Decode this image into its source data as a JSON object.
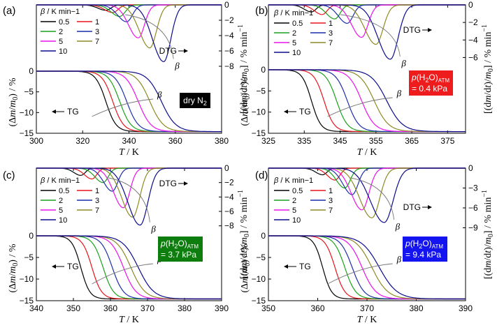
{
  "chart_data": [
    {
      "panel": "(a)",
      "type": "line",
      "xlabel": "T / K",
      "ylabel_left": "(Δm/m0) / %",
      "ylabel_right": "[(dm/dt)/m0] / % min−1",
      "xlim": [
        300,
        380
      ],
      "xticks": [
        300,
        320,
        340,
        360,
        380
      ],
      "tg_ylim": [
        -15,
        0
      ],
      "tg_yticks": [
        0,
        -5,
        -10,
        -15
      ],
      "dtg_ylim": [
        -8,
        0
      ],
      "dtg_yticks": [
        0,
        -2,
        -4,
        -6,
        -8
      ],
      "atmosphere_label": [
        "dry N",
        "2",
        ""
      ],
      "annotations": {
        "dtg": "DTG",
        "tg": "TG",
        "beta": "β"
      },
      "legend_title": "β / K min−1",
      "series": [
        {
          "name": "0.5",
          "tg_mid": 330,
          "tg_width": 2.2,
          "dtg_peak": 330,
          "dtg_min": -0.7
        },
        {
          "name": "1",
          "tg_mid": 333,
          "tg_width": 2.3,
          "dtg_peak": 333,
          "dtg_min": -1.0
        },
        {
          "name": "2",
          "tg_mid": 336,
          "tg_width": 2.4,
          "dtg_peak": 336,
          "dtg_min": -1.5
        },
        {
          "name": "3",
          "tg_mid": 339,
          "tg_width": 2.5,
          "dtg_peak": 339,
          "dtg_min": -2.2
        },
        {
          "name": "5",
          "tg_mid": 344,
          "tg_width": 2.7,
          "dtg_peak": 344,
          "dtg_min": -4.3
        },
        {
          "name": "7",
          "tg_mid": 349,
          "tg_width": 2.9,
          "dtg_peak": 349,
          "dtg_min": -5.6
        },
        {
          "name": "10",
          "tg_mid": 354,
          "tg_width": 3.1,
          "dtg_peak": 355,
          "dtg_min": -7.4
        }
      ]
    },
    {
      "panel": "(b)",
      "type": "line",
      "xlabel": "T / K",
      "ylabel_left": "(Δm/m0) / %",
      "ylabel_right": "[(dm/dt)/m0] / % min−1",
      "xlim": [
        325,
        380
      ],
      "xticks": [
        325,
        335,
        345,
        355,
        365,
        375
      ],
      "tg_ylim": [
        -15,
        0
      ],
      "tg_yticks": [
        0,
        -5,
        -10,
        -15
      ],
      "dtg_ylim": [
        -7,
        0
      ],
      "dtg_yticks": [
        0,
        -2,
        -4,
        -6
      ],
      "atmosphere_label": [
        "p(H",
        "2",
        "O)",
        "ATM",
        "= 0.4 kPa"
      ],
      "annotations": {
        "dtg": "DTG",
        "tg": "TG",
        "beta": "β"
      },
      "legend_title": "β / K min−1",
      "series": [
        {
          "name": "0.5",
          "tg_mid": 337,
          "tg_width": 1.3,
          "dtg_peak": 337,
          "dtg_min": -0.8
        },
        {
          "name": "1",
          "tg_mid": 340.5,
          "tg_width": 1.4,
          "dtg_peak": 340,
          "dtg_min": -1.1
        },
        {
          "name": "2",
          "tg_mid": 344,
          "tg_width": 1.5,
          "dtg_peak": 343.5,
          "dtg_min": -1.6
        },
        {
          "name": "3",
          "tg_mid": 347,
          "tg_width": 1.6,
          "dtg_peak": 347,
          "dtg_min": -2.1
        },
        {
          "name": "5",
          "tg_mid": 351,
          "tg_width": 1.8,
          "dtg_peak": 351,
          "dtg_min": -3.7
        },
        {
          "name": "7",
          "tg_mid": 354.5,
          "tg_width": 2.0,
          "dtg_peak": 355,
          "dtg_min": -4.5
        },
        {
          "name": "10",
          "tg_mid": 358,
          "tg_width": 2.2,
          "dtg_peak": 359,
          "dtg_min": -6.2
        }
      ]
    },
    {
      "panel": "(c)",
      "type": "line",
      "xlabel": "T / K",
      "ylabel_left": "(Δm/m0) / %",
      "ylabel_right": "[(dm/dt)/m0] / % min−1",
      "xlim": [
        340,
        390
      ],
      "xticks": [
        340,
        350,
        360,
        370,
        380,
        390
      ],
      "tg_ylim": [
        -15,
        0
      ],
      "tg_yticks": [
        0,
        -5,
        -10,
        -15
      ],
      "dtg_ylim": [
        -9,
        0
      ],
      "dtg_yticks": [
        0,
        -2,
        -4,
        -6,
        -8
      ],
      "atmosphere_label": [
        "p(H",
        "2",
        "O)",
        "ATM",
        "= 3.7 kPa"
      ],
      "annotations": {
        "dtg": "DTG",
        "tg": "TG",
        "beta": "β"
      },
      "legend_title": "β / K min−1",
      "series": [
        {
          "name": "0.5",
          "tg_mid": 352,
          "tg_width": 1.2,
          "dtg_peak": 352,
          "dtg_min": -1.0
        },
        {
          "name": "1",
          "tg_mid": 355,
          "tg_width": 1.3,
          "dtg_peak": 355,
          "dtg_min": -1.5
        },
        {
          "name": "2",
          "tg_mid": 358,
          "tg_width": 1.4,
          "dtg_peak": 358,
          "dtg_min": -2.0
        },
        {
          "name": "3",
          "tg_mid": 360.5,
          "tg_width": 1.5,
          "dtg_peak": 360.5,
          "dtg_min": -3.2
        },
        {
          "name": "5",
          "tg_mid": 363.5,
          "tg_width": 1.7,
          "dtg_peak": 363.5,
          "dtg_min": -5.5
        },
        {
          "name": "7",
          "tg_mid": 365.5,
          "tg_width": 1.9,
          "dtg_peak": 366,
          "dtg_min": -6.8
        },
        {
          "name": "10",
          "tg_mid": 367.5,
          "tg_width": 2.1,
          "dtg_peak": 368,
          "dtg_min": -7.9
        }
      ]
    },
    {
      "panel": "(d)",
      "type": "line",
      "xlabel": "T / K",
      "ylabel_left": "(Δm/m0) / %",
      "ylabel_right": "[(dm/dt)/m0] / % min−1",
      "xlim": [
        350,
        390
      ],
      "xticks": [
        350,
        360,
        370,
        380,
        390
      ],
      "tg_ylim": [
        -15,
        0
      ],
      "tg_yticks": [
        0,
        -5,
        -10,
        -15
      ],
      "dtg_ylim": [
        -10,
        0
      ],
      "dtg_yticks": [
        0,
        -3,
        -6,
        -9
      ],
      "atmosphere_label": [
        "p(H",
        "2",
        "O)",
        "ATM",
        "= 9.4 kPa"
      ],
      "annotations": {
        "dtg": "DTG",
        "tg": "TG",
        "beta": "β"
      },
      "legend_title": "β / K min−1",
      "series": [
        {
          "name": "0.5",
          "tg_mid": 361,
          "tg_width": 0.9,
          "dtg_peak": 361,
          "dtg_min": -1.0
        },
        {
          "name": "1",
          "tg_mid": 363.5,
          "tg_width": 1.0,
          "dtg_peak": 363.5,
          "dtg_min": -1.8
        },
        {
          "name": "2",
          "tg_mid": 365.5,
          "tg_width": 1.1,
          "dtg_peak": 365.5,
          "dtg_min": -3.0
        },
        {
          "name": "3",
          "tg_mid": 367,
          "tg_width": 1.2,
          "dtg_peak": 367,
          "dtg_min": -4.0
        },
        {
          "name": "5",
          "tg_mid": 369,
          "tg_width": 1.4,
          "dtg_peak": 369,
          "dtg_min": -6.3
        },
        {
          "name": "7",
          "tg_mid": 371,
          "tg_width": 1.6,
          "dtg_peak": 371,
          "dtg_min": -7.5
        },
        {
          "name": "10",
          "tg_mid": 372.5,
          "tg_width": 1.8,
          "dtg_peak": 373.5,
          "dtg_min": -8.2
        }
      ]
    }
  ],
  "colors": {
    "0.5": "#000000",
    "1": "#e8141b",
    "2": "#1aa11a",
    "3": "#1c2eaa",
    "5": "#ec12ec",
    "7": "#8c8a23",
    "10": "#0b0b8c",
    "label_a": "#000000",
    "label_b": "#ee1c1c",
    "label_c": "#0d7d0d",
    "label_d": "#1414f0"
  }
}
